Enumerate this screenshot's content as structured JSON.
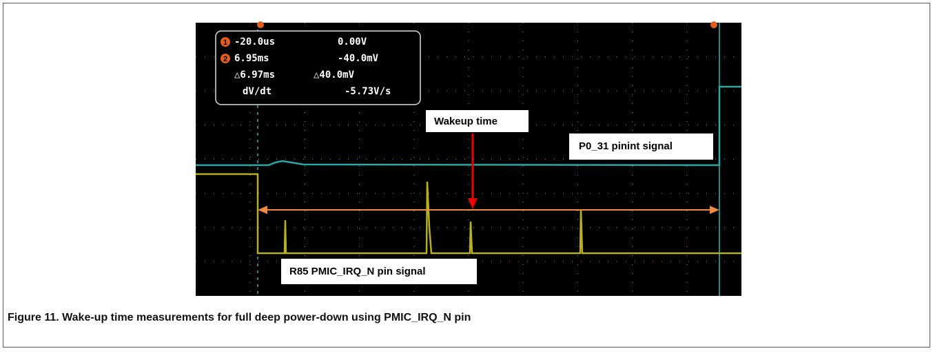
{
  "figure": {
    "readout": {
      "rows": [
        [
          "1",
          "-20.0us",
          "0.00V"
        ],
        [
          "2",
          "6.95ms",
          "-40.0mV"
        ],
        [
          "",
          "△6.97ms",
          "△40.0mV"
        ],
        [
          "",
          "dV/dt",
          "-5.73V/s"
        ]
      ]
    },
    "annotations": {
      "wakeup": "Wakeup time",
      "p0_31": "P0_31 pinint signal",
      "r85": "R85 PMIC_IRQ_N pin signal"
    },
    "caption": "Figure 11.  Wake-up time measurements for full deep power-down using PMIC_IRQ_N pin"
  }
}
